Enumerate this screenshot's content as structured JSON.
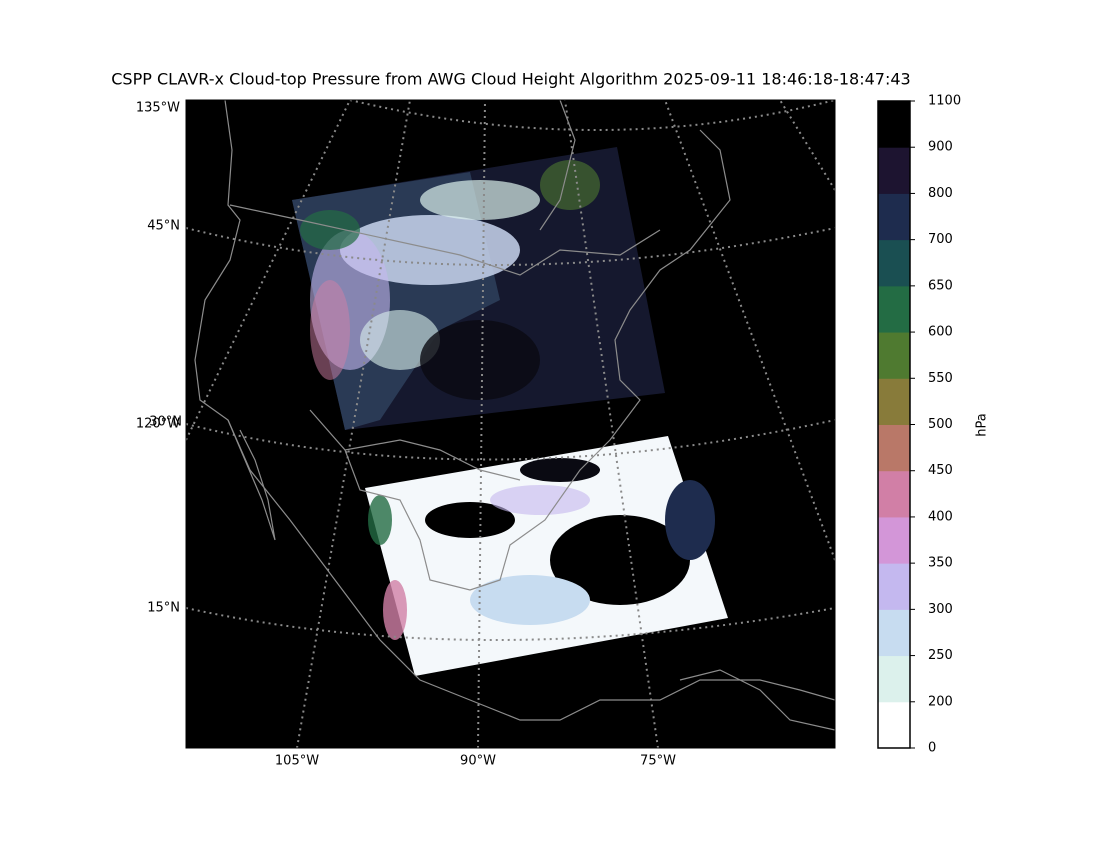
{
  "title": "CSPP CLAVR-x Cloud-top Pressure from AWG Cloud Height Algorithm 2025-09-11 18:46:18-18:47:43",
  "map": {
    "left_labels": [
      "135°W",
      "45°N",
      "120°W",
      "30°N",
      "15°N"
    ],
    "bottom_labels": [
      "105°W",
      "90°W",
      "75°W"
    ]
  },
  "colorbar": {
    "label": "hPa",
    "bounds": [
      0,
      200,
      250,
      300,
      350,
      400,
      450,
      500,
      550,
      600,
      650,
      700,
      800,
      900,
      1100
    ],
    "colors": [
      "#ffffff",
      "#dcf1ec",
      "#c7dcf0",
      "#c4b8ef",
      "#d396d8",
      "#d17fa6",
      "#b97868",
      "#887b3a",
      "#4f7a30",
      "#236c44",
      "#1a4f52",
      "#1e2c4e",
      "#1d1430",
      "#000000"
    ]
  }
}
